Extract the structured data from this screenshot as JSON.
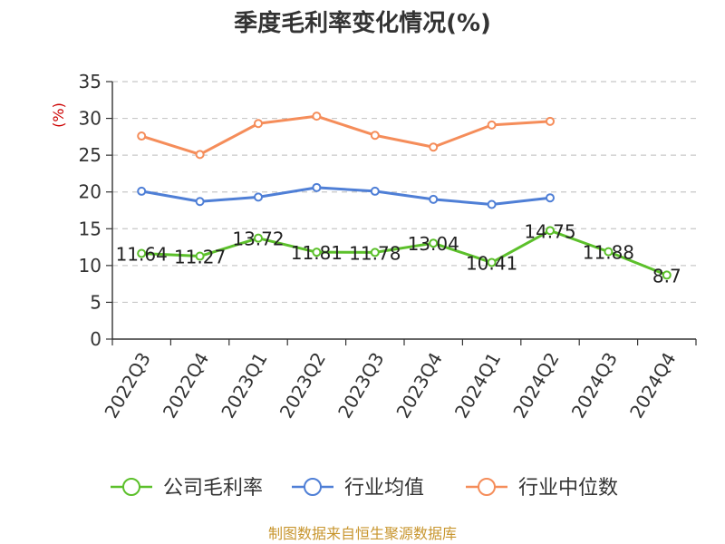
{
  "chart_data": {
    "type": "line",
    "title": "季度毛利率变化情况(%)",
    "unit_label": "(%)",
    "categories": [
      "2022Q3",
      "2022Q4",
      "2023Q1",
      "2023Q2",
      "2023Q3",
      "2023Q4",
      "2024Q1",
      "2024Q2",
      "2024Q3",
      "2024Q4"
    ],
    "ylim": [
      0,
      35
    ],
    "yticks": [
      0,
      5,
      10,
      15,
      20,
      25,
      30,
      35
    ],
    "grid": true,
    "legend_position": "bottom",
    "series": [
      {
        "name": "公司毛利率",
        "color": "#5cc02b",
        "values": [
          11.64,
          11.27,
          13.72,
          11.81,
          11.78,
          13.04,
          10.41,
          14.75,
          11.88,
          8.7
        ],
        "labels": [
          "11.64",
          "11.27",
          "13.72",
          "11.81",
          "11.78",
          "13.04",
          "10.41",
          "14.75",
          "11.88",
          "8.7"
        ]
      },
      {
        "name": "行业均值",
        "color": "#4f7fd6",
        "values": [
          20.1,
          18.7,
          19.3,
          20.6,
          20.1,
          19.0,
          18.3,
          19.2,
          null,
          null
        ]
      },
      {
        "name": "行业中位数",
        "color": "#f58d5a",
        "values": [
          27.6,
          25.1,
          29.3,
          30.3,
          27.7,
          26.1,
          29.1,
          29.6,
          null,
          null
        ]
      }
    ]
  },
  "footer": {
    "source": "制图数据来自恒生聚源数据库"
  }
}
